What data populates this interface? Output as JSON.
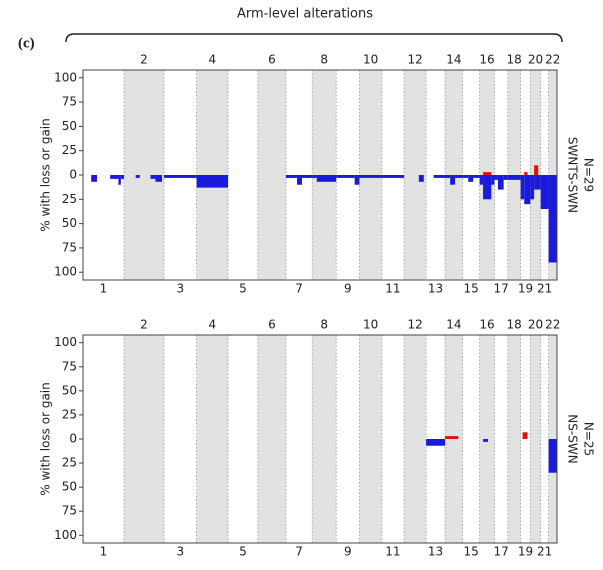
{
  "header": {
    "panel_label": "(c)",
    "title": "Arm-level alterations"
  },
  "chart_data": [
    {
      "type": "genome_bar",
      "y_label": "% with loss or gain",
      "side_label": "SWNTS-SWN",
      "n_label": "N=29",
      "xlim": [
        0,
        2879
      ],
      "ylim": [
        -108,
        108
      ],
      "yticks": [
        100,
        75,
        50,
        25,
        0,
        {
          "value": -25,
          "label": "25"
        },
        {
          "value": -50,
          "label": "50"
        },
        {
          "value": -75,
          "label": "75"
        },
        {
          "value": -100,
          "label": "100"
        }
      ],
      "chromosomes": [
        {
          "label": "1",
          "start": 0,
          "end": 249
        },
        {
          "label": "2",
          "start": 249,
          "end": 492
        },
        {
          "label": "3",
          "start": 492,
          "end": 690
        },
        {
          "label": "4",
          "start": 690,
          "end": 881
        },
        {
          "label": "5",
          "start": 881,
          "end": 1062
        },
        {
          "label": "6",
          "start": 1062,
          "end": 1233
        },
        {
          "label": "7",
          "start": 1233,
          "end": 1392
        },
        {
          "label": "8",
          "start": 1392,
          "end": 1538
        },
        {
          "label": "9",
          "start": 1538,
          "end": 1679
        },
        {
          "label": "10",
          "start": 1679,
          "end": 1815
        },
        {
          "label": "11",
          "start": 1815,
          "end": 1950
        },
        {
          "label": "12",
          "start": 1950,
          "end": 2084
        },
        {
          "label": "13",
          "start": 2084,
          "end": 2199
        },
        {
          "label": "14",
          "start": 2199,
          "end": 2306
        },
        {
          "label": "15",
          "start": 2306,
          "end": 2409
        },
        {
          "label": "16",
          "start": 2409,
          "end": 2499
        },
        {
          "label": "17",
          "start": 2499,
          "end": 2580
        },
        {
          "label": "18",
          "start": 2580,
          "end": 2658
        },
        {
          "label": "19",
          "start": 2658,
          "end": 2717
        },
        {
          "label": "20",
          "start": 2717,
          "end": 2780
        },
        {
          "label": "21",
          "start": 2780,
          "end": 2828
        },
        {
          "label": "22",
          "start": 2828,
          "end": 2879
        }
      ],
      "loss": {
        "color": "#1a1adc",
        "segments": [
          {
            "start": 50,
            "end": 85,
            "value": -7
          },
          {
            "start": 165,
            "end": 215,
            "value": -4
          },
          {
            "start": 215,
            "end": 230,
            "value": -10
          },
          {
            "start": 230,
            "end": 249,
            "value": -4
          },
          {
            "start": 320,
            "end": 345,
            "value": -3
          },
          {
            "start": 410,
            "end": 440,
            "value": -4
          },
          {
            "start": 440,
            "end": 480,
            "value": -7
          },
          {
            "start": 492,
            "end": 690,
            "value": -3
          },
          {
            "start": 690,
            "end": 881,
            "value": -13
          },
          {
            "start": 1233,
            "end": 1300,
            "value": -3
          },
          {
            "start": 1300,
            "end": 1330,
            "value": -10
          },
          {
            "start": 1330,
            "end": 1392,
            "value": -3
          },
          {
            "start": 1392,
            "end": 1420,
            "value": -3
          },
          {
            "start": 1420,
            "end": 1538,
            "value": -7
          },
          {
            "start": 1538,
            "end": 1650,
            "value": -3
          },
          {
            "start": 1650,
            "end": 1679,
            "value": -10
          },
          {
            "start": 1679,
            "end": 1815,
            "value": -3
          },
          {
            "start": 1815,
            "end": 1950,
            "value": -3
          },
          {
            "start": 2040,
            "end": 2070,
            "value": -7
          },
          {
            "start": 2130,
            "end": 2199,
            "value": -3
          },
          {
            "start": 2199,
            "end": 2230,
            "value": -3
          },
          {
            "start": 2230,
            "end": 2260,
            "value": -10
          },
          {
            "start": 2260,
            "end": 2306,
            "value": -3
          },
          {
            "start": 2306,
            "end": 2340,
            "value": -3
          },
          {
            "start": 2340,
            "end": 2370,
            "value": -7
          },
          {
            "start": 2370,
            "end": 2409,
            "value": -3
          },
          {
            "start": 2409,
            "end": 2430,
            "value": -10
          },
          {
            "start": 2430,
            "end": 2480,
            "value": -25
          },
          {
            "start": 2480,
            "end": 2499,
            "value": -10
          },
          {
            "start": 2499,
            "end": 2520,
            "value": -5
          },
          {
            "start": 2520,
            "end": 2555,
            "value": -15
          },
          {
            "start": 2555,
            "end": 2580,
            "value": -5
          },
          {
            "start": 2580,
            "end": 2658,
            "value": -5
          },
          {
            "start": 2658,
            "end": 2680,
            "value": -25
          },
          {
            "start": 2680,
            "end": 2717,
            "value": -30
          },
          {
            "start": 2717,
            "end": 2740,
            "value": -25
          },
          {
            "start": 2740,
            "end": 2780,
            "value": -15
          },
          {
            "start": 2780,
            "end": 2828,
            "value": -35
          },
          {
            "start": 2828,
            "end": 2879,
            "value": -90
          }
        ]
      },
      "gain": {
        "color": "#e01010",
        "segments": [
          {
            "start": 2430,
            "end": 2480,
            "value": 3
          },
          {
            "start": 2680,
            "end": 2700,
            "value": 3
          },
          {
            "start": 2740,
            "end": 2765,
            "value": 10
          }
        ]
      }
    },
    {
      "type": "genome_bar",
      "y_label": "% with loss or gain",
      "side_label": "NS-SWN",
      "n_label": "N=25",
      "xlim": [
        0,
        2879
      ],
      "ylim": [
        -108,
        108
      ],
      "yticks": [
        100,
        75,
        50,
        25,
        0,
        {
          "value": -25,
          "label": "25"
        },
        {
          "value": -50,
          "label": "50"
        },
        {
          "value": -75,
          "label": "75"
        },
        {
          "value": -100,
          "label": "100"
        }
      ],
      "chromosomes": [
        {
          "label": "1",
          "start": 0,
          "end": 249
        },
        {
          "label": "2",
          "start": 249,
          "end": 492
        },
        {
          "label": "3",
          "start": 492,
          "end": 690
        },
        {
          "label": "4",
          "start": 690,
          "end": 881
        },
        {
          "label": "5",
          "start": 881,
          "end": 1062
        },
        {
          "label": "6",
          "start": 1062,
          "end": 1233
        },
        {
          "label": "7",
          "start": 1233,
          "end": 1392
        },
        {
          "label": "8",
          "start": 1392,
          "end": 1538
        },
        {
          "label": "9",
          "start": 1538,
          "end": 1679
        },
        {
          "label": "10",
          "start": 1679,
          "end": 1815
        },
        {
          "label": "11",
          "start": 1815,
          "end": 1950
        },
        {
          "label": "12",
          "start": 1950,
          "end": 2084
        },
        {
          "label": "13",
          "start": 2084,
          "end": 2199
        },
        {
          "label": "14",
          "start": 2199,
          "end": 2306
        },
        {
          "label": "15",
          "start": 2306,
          "end": 2409
        },
        {
          "label": "16",
          "start": 2409,
          "end": 2499
        },
        {
          "label": "17",
          "start": 2499,
          "end": 2580
        },
        {
          "label": "18",
          "start": 2580,
          "end": 2658
        },
        {
          "label": "19",
          "start": 2658,
          "end": 2717
        },
        {
          "label": "20",
          "start": 2717,
          "end": 2780
        },
        {
          "label": "21",
          "start": 2780,
          "end": 2828
        },
        {
          "label": "22",
          "start": 2828,
          "end": 2879
        }
      ],
      "loss": {
        "color": "#1a1adc",
        "segments": [
          {
            "start": 2084,
            "end": 2199,
            "value": -7
          },
          {
            "start": 2430,
            "end": 2460,
            "value": -3
          },
          {
            "start": 2828,
            "end": 2879,
            "value": -35
          }
        ]
      },
      "gain": {
        "color": "#e01010",
        "segments": [
          {
            "start": 2199,
            "end": 2280,
            "value": 3
          },
          {
            "start": 2670,
            "end": 2700,
            "value": 7
          }
        ]
      }
    }
  ]
}
